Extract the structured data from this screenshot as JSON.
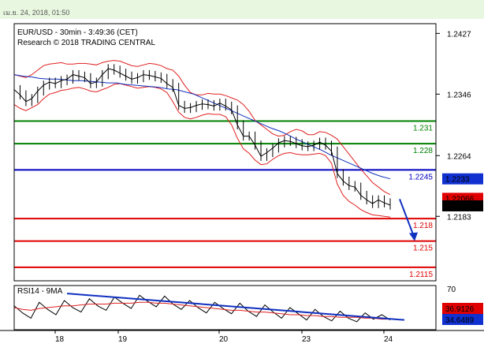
{
  "header": {
    "timestamp": "เม.ย. 24, 2018, 01:50"
  },
  "chart_data": {
    "type": "line",
    "title": "EUR/USD - 30min - 3:49:36 (CET)",
    "subtitle": "Research © 2018 TRADING CENTRAL",
    "price_axis": {
      "ylim": [
        2.2115,
        1.2427
      ],
      "ticks": [
        "1.2427",
        "1.2346",
        "1.2264",
        "1.2183"
      ]
    },
    "price_range": [
      1.2097,
      1.244
    ],
    "x_ticks": [
      "18",
      "19",
      "20",
      "23",
      "24"
    ],
    "levels": [
      {
        "value": 1.231,
        "label": "1.231",
        "color": "#008000"
      },
      {
        "value": 1.228,
        "label": "1.228",
        "color": "#008000"
      },
      {
        "value": 1.2245,
        "label": "1.2245",
        "color": "#0000c0"
      },
      {
        "value": 1.218,
        "label": "1.218",
        "color": "#e00000"
      },
      {
        "value": 1.215,
        "label": "1.215",
        "color": "#e00000"
      },
      {
        "value": 1.2115,
        "label": "1.2115",
        "color": "#e00000"
      }
    ],
    "price_tags": [
      {
        "value": 1.2233,
        "label": "1.2233",
        "color": "#1030d0"
      },
      {
        "value": 1.2207,
        "label": "1.22066",
        "color": "#e00000"
      },
      {
        "value": 1.2197,
        "label": "1.21967",
        "color": "#000000"
      }
    ],
    "price": [
      1.2352,
      1.2345,
      1.2336,
      1.234,
      1.235,
      1.2358,
      1.2362,
      1.236,
      1.2364,
      1.2366,
      1.2372,
      1.237,
      1.2368,
      1.236,
      1.2362,
      1.2372,
      1.238,
      1.2378,
      1.2374,
      1.237,
      1.2366,
      1.2368,
      1.2372,
      1.2371,
      1.2369,
      1.2367,
      1.236,
      1.2355,
      1.2331,
      1.2327,
      1.2328,
      1.2331,
      1.2333,
      1.2332,
      1.233,
      1.2334,
      1.233,
      1.2325,
      1.2305,
      1.229,
      1.229,
      1.2278,
      1.2263,
      1.2268,
      1.2274,
      1.2281,
      1.2284,
      1.2283,
      1.228,
      1.2277,
      1.2276,
      1.2278,
      1.2282,
      1.2278,
      1.227,
      1.224,
      1.223,
      1.2224,
      1.2222,
      1.2211,
      1.2205,
      1.22,
      1.2205,
      1.2201,
      1.2198
    ],
    "bb_upper": [
      1.2372,
      1.237,
      1.2368,
      1.2372,
      1.2378,
      1.2384,
      1.2386,
      1.2387,
      1.2388,
      1.2386,
      1.2386,
      1.2387,
      1.2387,
      1.2386,
      1.2385,
      1.2388,
      1.239,
      1.2391,
      1.239,
      1.2387,
      1.2384,
      1.2383,
      1.2385,
      1.2387,
      1.2386,
      1.2384,
      1.238,
      1.2378,
      1.237,
      1.2358,
      1.2348,
      1.2345,
      1.2345,
      1.2347,
      1.2346,
      1.2346,
      1.2344,
      1.2341,
      1.2338,
      1.2332,
      1.2323,
      1.2311,
      1.2305,
      1.2299,
      1.2293,
      1.229,
      1.2291,
      1.2296,
      1.2299,
      1.2297,
      1.2292,
      1.2292,
      1.2296,
      1.2295,
      1.2291,
      1.2286,
      1.2276,
      1.2266,
      1.2256,
      1.2246,
      1.2237,
      1.2228,
      1.2222,
      1.2216,
      1.2212
    ],
    "bb_lower": [
      1.2332,
      1.2327,
      1.2324,
      1.2328,
      1.2332,
      1.234,
      1.2346,
      1.2348,
      1.2351,
      1.2352,
      1.2354,
      1.2355,
      1.2353,
      1.235,
      1.2349,
      1.2352,
      1.2355,
      1.2359,
      1.236,
      1.2358,
      1.2356,
      1.2354,
      1.2355,
      1.2356,
      1.2355,
      1.2353,
      1.2348,
      1.2336,
      1.2322,
      1.2315,
      1.2313,
      1.2315,
      1.2318,
      1.232,
      1.2319,
      1.2319,
      1.2316,
      1.2305,
      1.2287,
      1.2273,
      1.2267,
      1.2258,
      1.2252,
      1.2253,
      1.2259,
      1.2264,
      1.2267,
      1.2268,
      1.2266,
      1.2265,
      1.2265,
      1.2266,
      1.2267,
      1.2264,
      1.2254,
      1.2226,
      1.2211,
      1.2203,
      1.2198,
      1.2192,
      1.2188,
      1.2185,
      1.2184,
      1.2183,
      1.2182
    ],
    "ma": [
      1.2372,
      1.237,
      1.2369,
      1.2367,
      1.2366,
      1.2366,
      1.2365,
      1.2364,
      1.2364,
      1.2363,
      1.2362,
      1.2361,
      1.2361,
      1.2359,
      1.2358,
      1.2357,
      1.2356,
      1.2355,
      1.2353,
      1.2352,
      1.2349,
      1.2346,
      1.2341,
      1.2336,
      1.2331,
      1.2326,
      1.2321,
      1.2316,
      1.2311,
      1.2306,
      1.2301,
      1.2297,
      1.2292,
      1.2286,
      1.2281,
      1.2276,
      1.2271,
      1.2265,
      1.226,
      1.2255,
      1.225,
      1.2245,
      1.224,
      1.2236,
      1.2233
    ],
    "forecast": [
      [
        1.2206,
        1.215
      ]
    ],
    "rsi": {
      "label": "RSI14 - 9MA",
      "ticks": [
        "70"
      ],
      "ylim": [
        30,
        70
      ],
      "tags": [
        {
          "value": 36.9126,
          "label": "36.9126",
          "color": "#e00000"
        },
        {
          "value": 34.6489,
          "label": "34.6489",
          "color": "#1030d0"
        }
      ],
      "values": [
        52,
        44,
        38,
        56,
        48,
        42,
        58,
        50,
        45,
        60,
        52,
        47,
        62,
        55,
        49,
        64,
        57,
        51,
        63,
        54,
        48,
        58,
        50,
        44,
        56,
        49,
        43,
        55,
        46,
        40,
        53,
        45,
        38,
        50,
        43,
        36,
        48,
        40,
        35,
        46,
        38,
        34,
        44,
        37,
        42,
        36
      ],
      "ma": [
        50,
        48,
        47,
        49,
        50,
        51,
        52,
        52,
        53,
        54,
        54,
        54,
        55,
        55,
        55,
        56,
        56,
        55,
        55,
        54,
        53,
        52,
        51,
        50,
        49,
        48,
        47,
        47,
        46,
        45,
        45,
        44,
        43,
        42,
        42,
        41,
        41,
        40,
        40,
        39,
        39,
        39,
        38,
        38,
        37,
        37
      ],
      "trendline": [
        [
          66,
          36
        ]
      ]
    }
  }
}
